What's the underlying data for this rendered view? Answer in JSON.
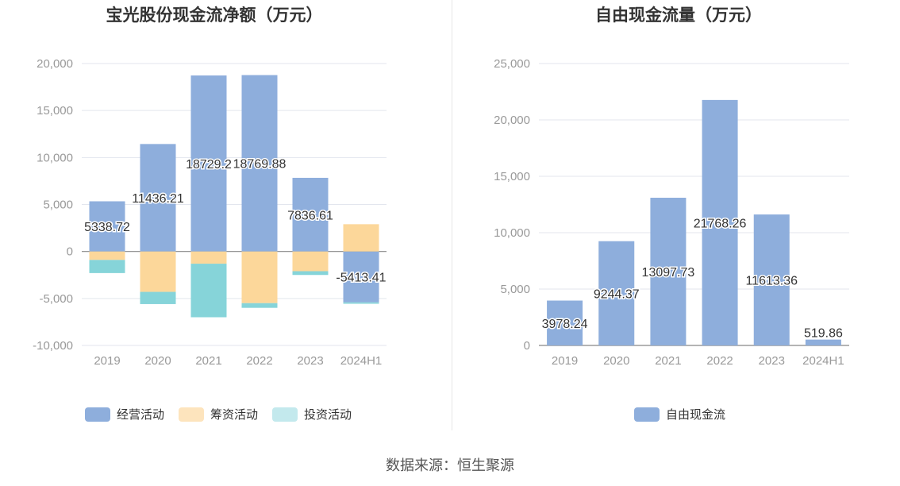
{
  "source": "数据来源：恒生聚源",
  "chart_data": [
    {
      "type": "bar",
      "stacked": true,
      "title": "宝光股份现金流净额（万元）",
      "categories": [
        "2019",
        "2020",
        "2021",
        "2022",
        "2023",
        "2024H1"
      ],
      "ylim": [
        -10000,
        20000
      ],
      "yticks": [
        20000,
        15000,
        10000,
        5000,
        0,
        -5000,
        -10000
      ],
      "ytick_labels": [
        "20,000",
        "15,000",
        "10,000",
        "5,000",
        "0",
        "-5,000",
        "-10,000"
      ],
      "grid": true,
      "legend_position": "bottom",
      "series": [
        {
          "name": "经营活动",
          "color": "#8eaedc",
          "legend_color": "#8eaedc",
          "values": [
            5338.72,
            11436.21,
            18729.2,
            18769.88,
            7836.61,
            -5413.41
          ],
          "labels": [
            "5338.72",
            "11436.21",
            "18729.2",
            "18769.88",
            "7836.61",
            "-5413.41"
          ]
        },
        {
          "name": "筹资活动",
          "color": "#fcd79a",
          "legend_color": "#fde4bd",
          "values": [
            -900,
            -4300,
            -1300,
            -5500,
            -2100,
            2900
          ]
        },
        {
          "name": "投资活动",
          "color": "#86d4d9",
          "legend_color": "#c3e9ed",
          "values": [
            -1400,
            -1300,
            -5700,
            -500,
            -400,
            -150
          ]
        }
      ]
    },
    {
      "type": "bar",
      "title": "自由现金流量（万元）",
      "categories": [
        "2019",
        "2020",
        "2021",
        "2022",
        "2023",
        "2024H1"
      ],
      "ylim": [
        0,
        25000
      ],
      "yticks": [
        25000,
        20000,
        15000,
        10000,
        5000,
        0
      ],
      "ytick_labels": [
        "25,000",
        "20,000",
        "15,000",
        "10,000",
        "5,000",
        "0"
      ],
      "grid": true,
      "legend_position": "bottom",
      "series": [
        {
          "name": "自由现金流",
          "color": "#8eaedc",
          "legend_color": "#8eaedc",
          "values": [
            3978.24,
            9244.37,
            13097.73,
            21768.26,
            11613.36,
            519.86
          ],
          "labels": [
            "3978.24",
            "9244.37",
            "13097.73",
            "21768.26",
            "11613.36",
            "519.86"
          ]
        }
      ]
    }
  ]
}
